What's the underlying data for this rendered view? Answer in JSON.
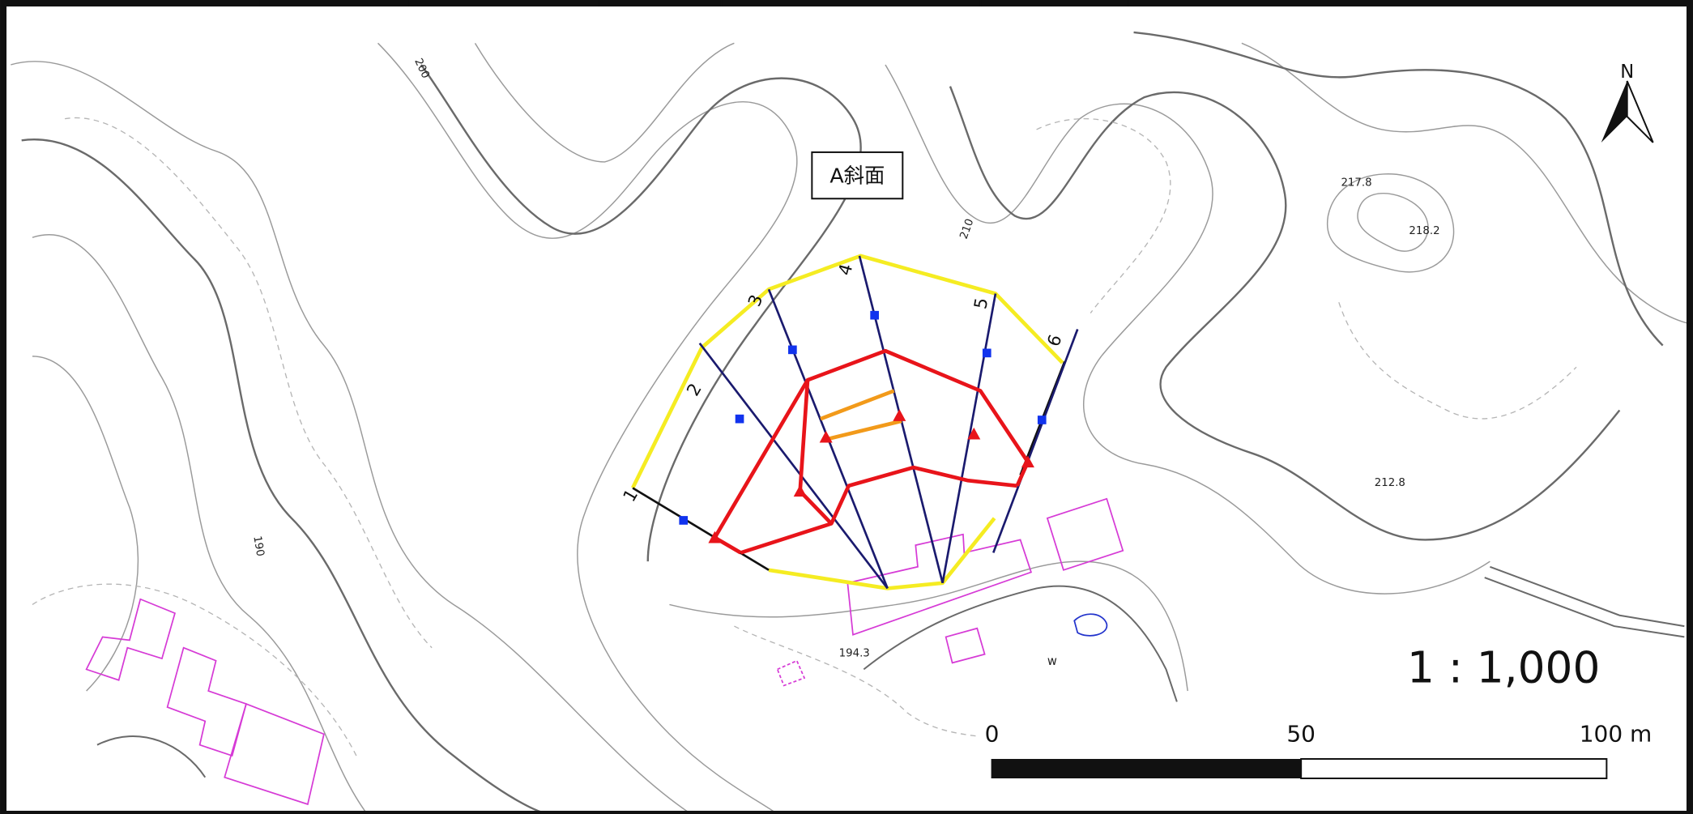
{
  "map": {
    "label_box": "A斜面",
    "north": "N",
    "elevations": [
      "217.8",
      "218.2",
      "212.8",
      "194.3"
    ],
    "contour_labels": [
      "200",
      "210",
      "190"
    ],
    "well": "w",
    "section_lines": [
      "1",
      "2",
      "3",
      "4",
      "5",
      "6"
    ],
    "scale_ratio": "1 : 1,000",
    "scale_bar": [
      "0",
      "50",
      "100 m"
    ]
  }
}
